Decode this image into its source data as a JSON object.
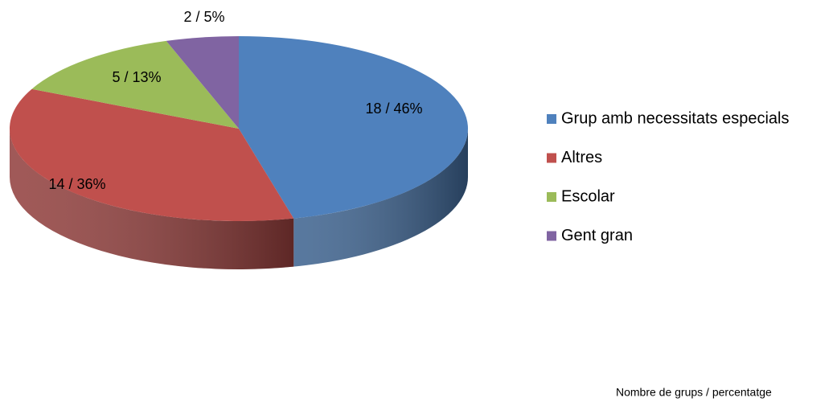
{
  "chart_data": {
    "type": "pie",
    "categories": [
      "Grup amb necessitats especials",
      "Altres",
      "Escolar",
      "Gent gran"
    ],
    "values": [
      18,
      14,
      5,
      2
    ],
    "value_labels": [
      "18 / 46%",
      "14 / 36%",
      "5 / 13%",
      "2 / 5%"
    ],
    "colors": [
      "#4f81bd",
      "#c0504d",
      "#9bbb59",
      "#8064a2"
    ],
    "legend": "right",
    "annotation": "Nombre de  grups / percentatge"
  }
}
